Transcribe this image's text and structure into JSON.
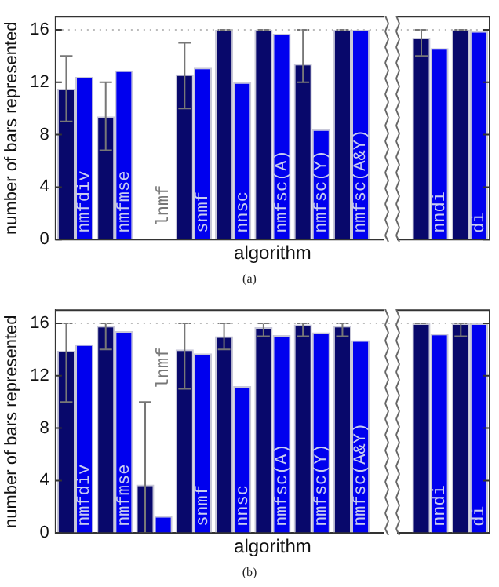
{
  "chart_data": [
    {
      "type": "bar",
      "xlabel": "algorithm",
      "ylabel": "number of bars represented",
      "annotations": [
        "(a)"
      ],
      "categories": [
        "nmfdiv",
        "nmfmse",
        "lnmf",
        "snmf",
        "nnsc",
        "nmfsc(A)",
        "nmfsc(Y)",
        "nmfsc(A&Y)",
        null,
        "nndi",
        "di"
      ],
      "series": [
        {
          "color": "#08086b",
          "values": [
            11.5,
            9.4,
            0,
            12.6,
            16,
            16,
            13.4,
            16,
            null,
            15.4,
            16
          ],
          "errors": [
            [
              9,
              14
            ],
            [
              6.8,
              12
            ],
            null,
            [
              10,
              15
            ],
            [
              16,
              16
            ],
            [
              16,
              16
            ],
            [
              12,
              16
            ],
            [
              16,
              16
            ],
            null,
            [
              14,
              16
            ],
            [
              16,
              16
            ]
          ]
        },
        {
          "color": "#0000ee",
          "values": [
            12.4,
            12.9,
            0,
            13.1,
            12.0,
            15.7,
            8.4,
            16,
            null,
            14.6,
            15.9
          ]
        }
      ],
      "ylim": [
        0,
        17
      ],
      "yticks": [
        0,
        4,
        8,
        12,
        16
      ],
      "grid": false,
      "tick_labels": "y",
      "ref_lines": [
        {
          "axis": "y",
          "value": 16,
          "line_style": "dotted",
          "color": "#bbbbbb"
        }
      ]
    },
    {
      "type": "bar",
      "xlabel": "algorithm",
      "ylabel": "number of bars represented",
      "annotations": [
        "(b)"
      ],
      "categories": [
        "nmfdiv",
        "nmfmse",
        "lnmf",
        "snmf",
        "nnsc",
        "nmfsc(A)",
        "nmfsc(Y)",
        "nmfsc(A&Y)",
        null,
        "nndi",
        "di"
      ],
      "series": [
        {
          "color": "#08086b",
          "values": [
            13.9,
            15.8,
            3.7,
            14,
            15,
            15.7,
            15.9,
            15.8,
            null,
            16,
            16
          ],
          "errors": [
            [
              10,
              16
            ],
            [
              14,
              16
            ],
            [
              0,
              10
            ],
            [
              11,
              16
            ],
            [
              14,
              16
            ],
            [
              15,
              16
            ],
            [
              15,
              16
            ],
            [
              15,
              16
            ],
            null,
            [
              16,
              16
            ],
            [
              15,
              16
            ]
          ]
        },
        {
          "color": "#0000ee",
          "values": [
            14.4,
            15.4,
            1.3,
            13.7,
            11.2,
            15.1,
            15.3,
            14.7,
            null,
            15.2,
            16
          ]
        }
      ],
      "ylim": [
        0,
        17
      ],
      "yticks": [
        0,
        4,
        8,
        12,
        16
      ],
      "grid": false,
      "tick_labels": "y",
      "ref_lines": [
        {
          "axis": "y",
          "value": 16,
          "line_style": "dotted",
          "color": "#bbbbbb"
        }
      ]
    }
  ]
}
